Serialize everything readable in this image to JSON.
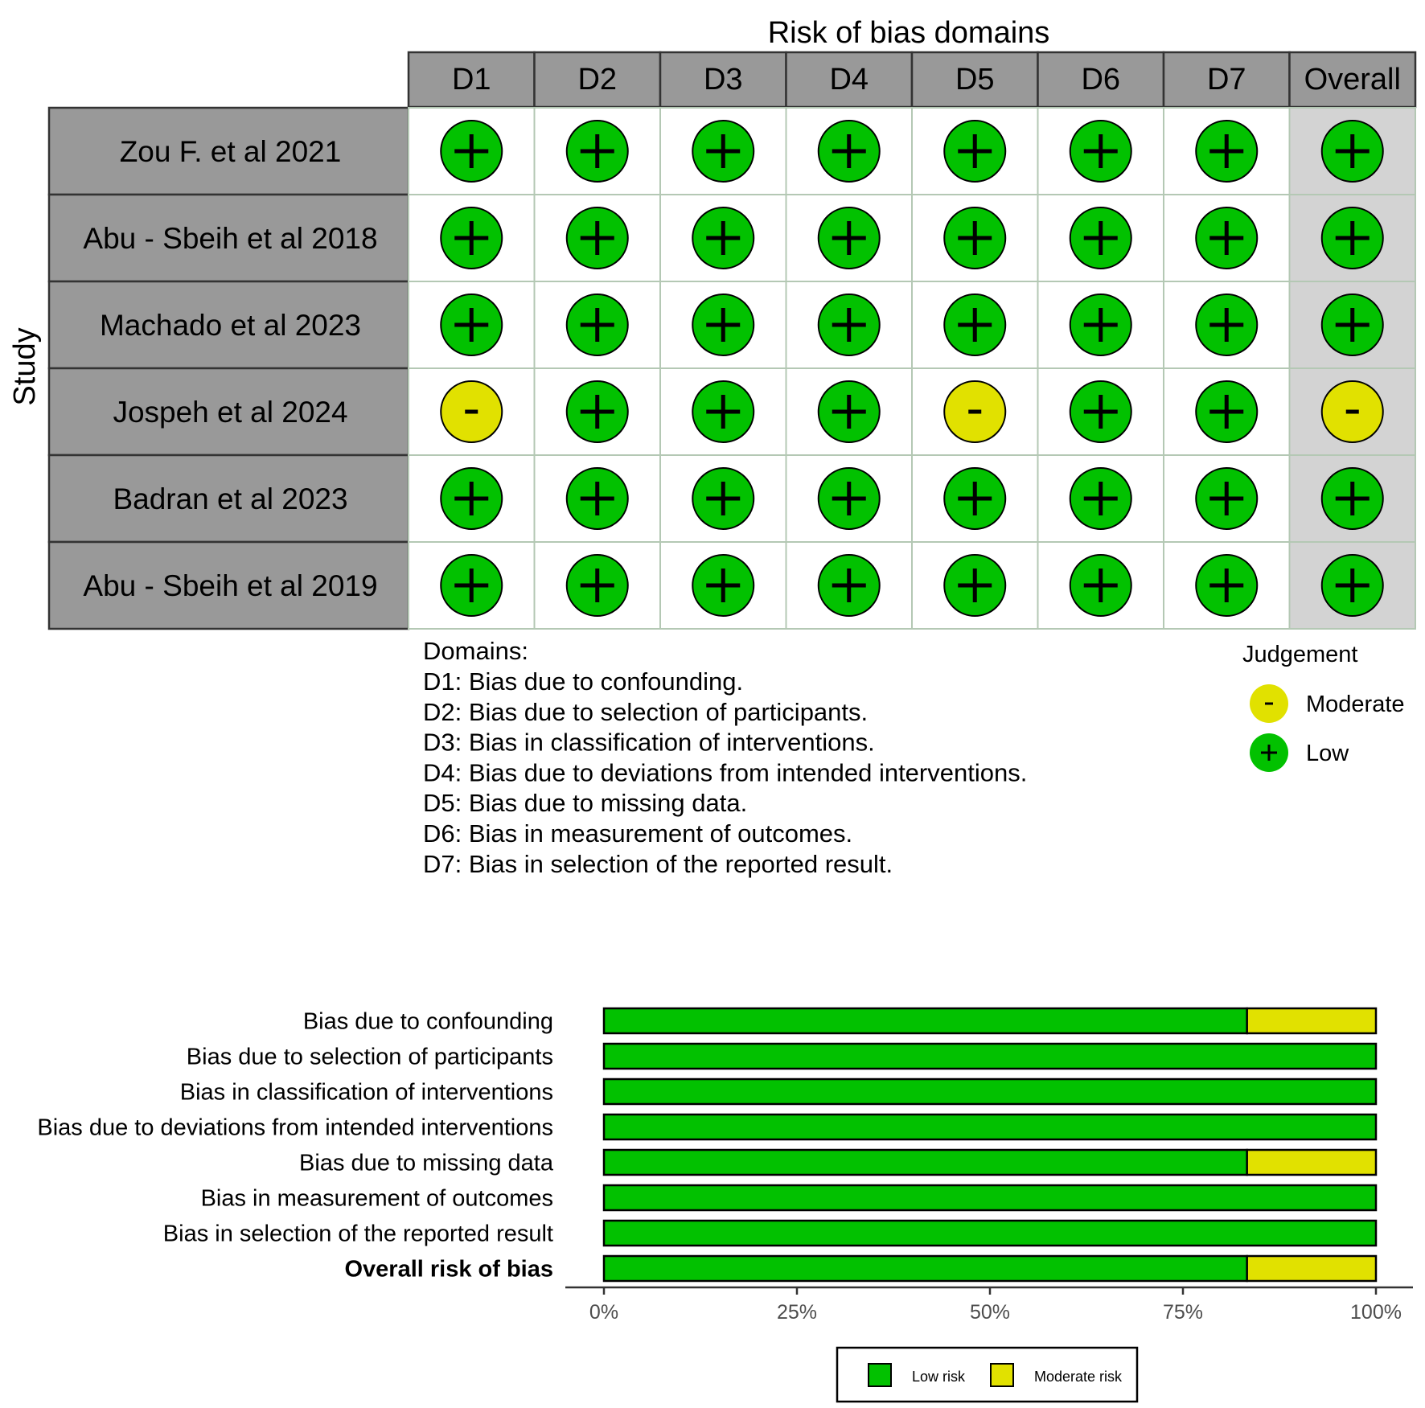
{
  "colors": {
    "low": "#02C100",
    "moderate": "#E1E100",
    "header_fill": "#999999",
    "overall_fill": "#D3D3D3",
    "grid_line": "#B4C8B4",
    "border": "#333333"
  },
  "chart_data": [
    {
      "type": "table",
      "title": "Risk of bias domains",
      "ylabel": "Study",
      "domains": [
        "D1",
        "D2",
        "D3",
        "D4",
        "D5",
        "D6",
        "D7",
        "Overall"
      ],
      "studies": [
        "Zou F. et al 2021",
        "Abu - Sbeih et al 2018",
        "Machado et al 2023",
        "Jospeh et al 2024",
        "Badran et al 2023",
        "Abu - Sbeih et al 2019"
      ],
      "judgements": [
        [
          "Low",
          "Low",
          "Low",
          "Low",
          "Low",
          "Low",
          "Low",
          "Low"
        ],
        [
          "Low",
          "Low",
          "Low",
          "Low",
          "Low",
          "Low",
          "Low",
          "Low"
        ],
        [
          "Low",
          "Low",
          "Low",
          "Low",
          "Low",
          "Low",
          "Low",
          "Low"
        ],
        [
          "Moderate",
          "Low",
          "Low",
          "Low",
          "Moderate",
          "Low",
          "Low",
          "Moderate"
        ],
        [
          "Low",
          "Low",
          "Low",
          "Low",
          "Low",
          "Low",
          "Low",
          "Low"
        ],
        [
          "Low",
          "Low",
          "Low",
          "Low",
          "Low",
          "Low",
          "Low",
          "Low"
        ]
      ],
      "symbols": {
        "Low": "+",
        "Moderate": "-"
      },
      "domains_caption": {
        "heading": "Domains:",
        "lines": [
          "D1: Bias due to confounding.",
          "D2: Bias due to selection of participants.",
          "D3: Bias in classification of interventions.",
          "D4: Bias due to deviations from intended interventions.",
          "D5: Bias due to missing data.",
          "D6: Bias in measurement of outcomes.",
          "D7: Bias in selection of the reported result."
        ]
      },
      "legend": {
        "title": "Judgement",
        "position": "right",
        "entries": [
          {
            "label": "Moderate",
            "symbol": "-",
            "level": "Moderate"
          },
          {
            "label": "Low",
            "symbol": "+",
            "level": "Low"
          }
        ]
      }
    },
    {
      "type": "bar",
      "orientation": "horizontal",
      "stacked": true,
      "categories": [
        "Bias due to confounding",
        "Bias due to selection of participants",
        "Bias in classification of interventions",
        "Bias due to deviations from intended interventions",
        "Bias due to missing data",
        "Bias in measurement of outcomes",
        "Bias in selection of the reported result",
        "Overall risk of bias"
      ],
      "bold_category": "Overall risk of bias",
      "series": [
        {
          "name": "Low risk",
          "level": "Low",
          "values": [
            83.3,
            100,
            100,
            100,
            83.3,
            100,
            100,
            83.3
          ]
        },
        {
          "name": "Moderate risk",
          "level": "Moderate",
          "values": [
            16.7,
            0,
            0,
            0,
            16.7,
            0,
            0,
            16.7
          ]
        }
      ],
      "xlim": [
        0,
        100
      ],
      "xticks": [
        "0%",
        "25%",
        "50%",
        "75%",
        "100%"
      ],
      "legend": {
        "position": "bottom"
      }
    }
  ]
}
